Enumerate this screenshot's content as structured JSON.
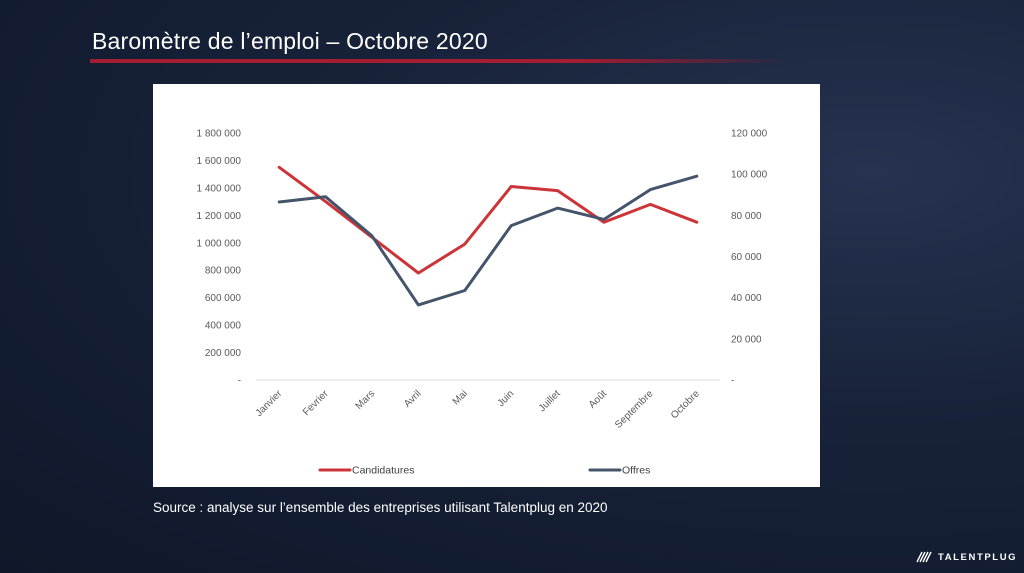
{
  "slide": {
    "title": "Baromètre de l’emploi – Octobre 2020",
    "source": "Source : analyse sur l’ensemble des entreprises utilisant Talentplug en 2020",
    "logo_text": "TALENTPLUG",
    "title_rule_color": "#a51d31"
  },
  "chart_data": {
    "type": "line",
    "title": "",
    "categories": [
      "Janvier",
      "Fevrier",
      "Mars",
      "Avril",
      "Mai",
      "Juin",
      "Juillet",
      "Août",
      "Septembre",
      "Octobre"
    ],
    "series": [
      {
        "name": "Candidatures",
        "axis": "left",
        "color": "#cc3438",
        "values": [
          1550000,
          1300000,
          1040000,
          780000,
          990000,
          1410000,
          1380000,
          1150000,
          1280000,
          1150000
        ]
      },
      {
        "name": "Offres",
        "axis": "right",
        "color": "#44546a",
        "values": [
          86500,
          89000,
          70000,
          36500,
          43500,
          75000,
          83500,
          78000,
          92500,
          99000
        ]
      }
    ],
    "y_left": {
      "range": [
        0,
        1800000
      ],
      "tick_labels": [
        "-",
        "200 000",
        "400 000",
        "600 000",
        "800 000",
        "1 000 000",
        "1 200 000",
        "1 400 000",
        "1 600 000",
        "1 800 000"
      ]
    },
    "y_right": {
      "range": [
        0,
        120000
      ],
      "tick_labels": [
        "-",
        "20 000",
        "40 000",
        "60 000",
        "80 000",
        "100 000",
        "120 000"
      ]
    },
    "grid": false,
    "legend_position": "bottom"
  }
}
